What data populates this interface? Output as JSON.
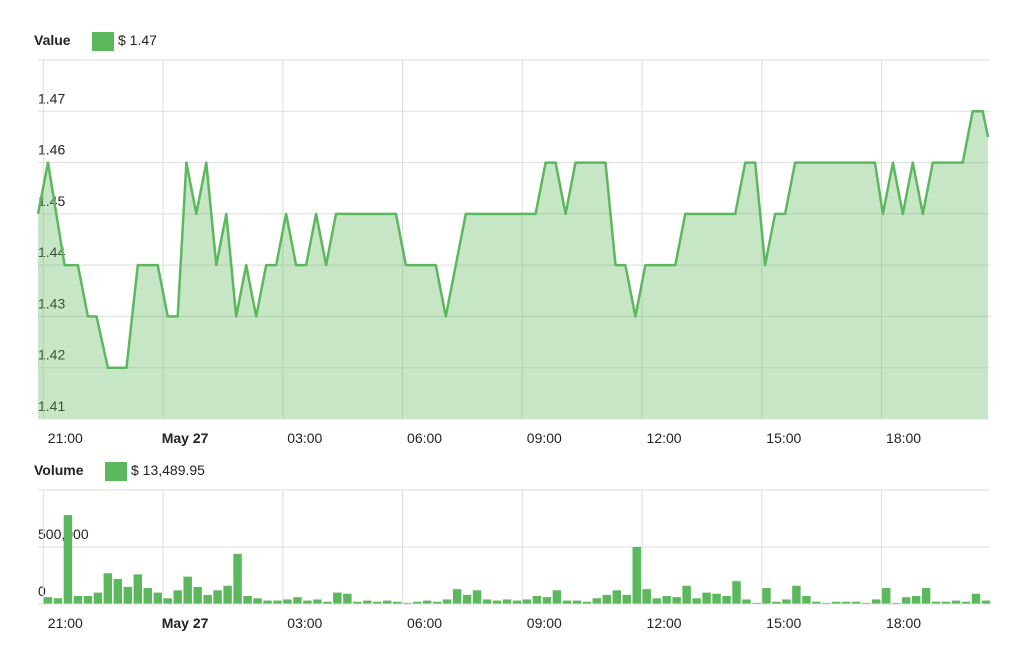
{
  "chart_data": [
    {
      "type": "area",
      "title": "Value",
      "series": [
        {
          "name": "$ 1.47",
          "color": "#5cb85c",
          "values": [
            1.45,
            1.46,
            1.44,
            1.44,
            1.43,
            1.43,
            1.42,
            1.42,
            1.44,
            1.44,
            1.43,
            1.43,
            1.46,
            1.45,
            1.46,
            1.44,
            1.45,
            1.43,
            1.44,
            1.43,
            1.44,
            1.44,
            1.45,
            1.44,
            1.44,
            1.45,
            1.44,
            1.45,
            1.45,
            1.44,
            1.44,
            1.43,
            1.45,
            1.45,
            1.46,
            1.46,
            1.45,
            1.46,
            1.46,
            1.44,
            1.44,
            1.43,
            1.44,
            1.44,
            1.45,
            1.45,
            1.46,
            1.46,
            1.44,
            1.45,
            1.45,
            1.46,
            1.46,
            1.45,
            1.46,
            1.45,
            1.46,
            1.45,
            1.46,
            1.46,
            1.47,
            1.47,
            1.465
          ]
        }
      ],
      "x": [
        -8,
        7,
        32,
        52,
        67,
        80,
        97,
        125,
        142,
        172,
        187,
        202,
        215,
        230,
        245,
        260,
        275,
        290,
        305,
        320,
        335,
        350,
        365,
        380,
        395,
        410,
        425,
        440,
        530,
        545,
        590,
        605,
        635,
        740,
        755,
        770,
        785,
        800,
        845,
        860,
        875,
        890,
        905,
        950,
        965,
        1040,
        1055,
        1070,
        1085,
        1100,
        1115,
        1130,
        1250,
        1262,
        1277,
        1292,
        1307,
        1322,
        1337,
        1382,
        1397,
        1412,
        1420
      ],
      "xlim": [
        -8,
        1420
      ],
      "xticks": [
        {
          "value": 0,
          "label": "21:00"
        },
        {
          "value": 180,
          "label": "May 27"
        },
        {
          "value": 360,
          "label": "03:00"
        },
        {
          "value": 540,
          "label": "06:00"
        },
        {
          "value": 720,
          "label": "09:00"
        },
        {
          "value": 900,
          "label": "12:00"
        },
        {
          "value": 1080,
          "label": "15:00"
        },
        {
          "value": 1260,
          "label": "18:00"
        }
      ],
      "ylim": [
        1.41,
        1.48
      ],
      "yticks": [
        1.41,
        1.42,
        1.43,
        1.44,
        1.45,
        1.46,
        1.47
      ],
      "grid": true
    },
    {
      "type": "bar",
      "title": "Volume",
      "series": [
        {
          "name": "$ 13,489.95",
          "color": "#5cb85c",
          "values": [
            60000,
            50000,
            780000,
            70000,
            70000,
            100000,
            270000,
            220000,
            150000,
            260000,
            140000,
            100000,
            50000,
            120000,
            240000,
            150000,
            80000,
            120000,
            160000,
            440000,
            70000,
            50000,
            30000,
            30000,
            40000,
            60000,
            30000,
            40000,
            20000,
            100000,
            90000,
            20000,
            30000,
            20000,
            30000,
            20000,
            10000,
            20000,
            30000,
            20000,
            40000,
            130000,
            80000,
            120000,
            40000,
            30000,
            40000,
            30000,
            40000,
            70000,
            60000,
            120000,
            30000,
            30000,
            20000,
            50000,
            80000,
            120000,
            80000,
            500000,
            130000,
            50000,
            70000,
            60000,
            160000,
            50000,
            100000,
            90000,
            70000,
            200000,
            40000,
            10000,
            140000,
            20000,
            40000,
            160000,
            70000,
            20000,
            10000,
            20000,
            20000,
            20000,
            10000,
            40000,
            140000,
            10000,
            60000,
            70000,
            140000,
            20000,
            20000,
            30000,
            20000,
            90000,
            30000
          ]
        }
      ],
      "x": [
        7,
        22,
        37,
        52,
        67,
        82,
        97,
        112,
        127,
        142,
        157,
        172,
        187,
        202,
        217,
        232,
        247,
        262,
        277,
        292,
        307,
        322,
        337,
        352,
        367,
        382,
        397,
        412,
        427,
        442,
        457,
        472,
        487,
        502,
        517,
        532,
        547,
        562,
        577,
        592,
        607,
        622,
        637,
        652,
        667,
        682,
        697,
        712,
        727,
        742,
        757,
        772,
        787,
        802,
        817,
        832,
        847,
        862,
        877,
        892,
        907,
        922,
        937,
        952,
        967,
        982,
        997,
        1012,
        1027,
        1042,
        1057,
        1072,
        1087,
        1102,
        1117,
        1132,
        1147,
        1162,
        1177,
        1192,
        1207,
        1222,
        1237,
        1252,
        1267,
        1282,
        1297,
        1312,
        1327,
        1342,
        1357,
        1372,
        1387,
        1402,
        1417
      ],
      "xlim": [
        -8,
        1420
      ],
      "xticks": [
        {
          "value": 0,
          "label": "21:00"
        },
        {
          "value": 180,
          "label": "May 27"
        },
        {
          "value": 360,
          "label": "03:00"
        },
        {
          "value": 540,
          "label": "06:00"
        },
        {
          "value": 720,
          "label": "09:00"
        },
        {
          "value": 900,
          "label": "12:00"
        },
        {
          "value": 1080,
          "label": "15:00"
        },
        {
          "value": 1260,
          "label": "18:00"
        }
      ],
      "ylim": [
        0,
        1000000
      ],
      "yticks": [
        0,
        {
          "value": 500000,
          "label": "500,000"
        }
      ],
      "grid": true
    }
  ]
}
